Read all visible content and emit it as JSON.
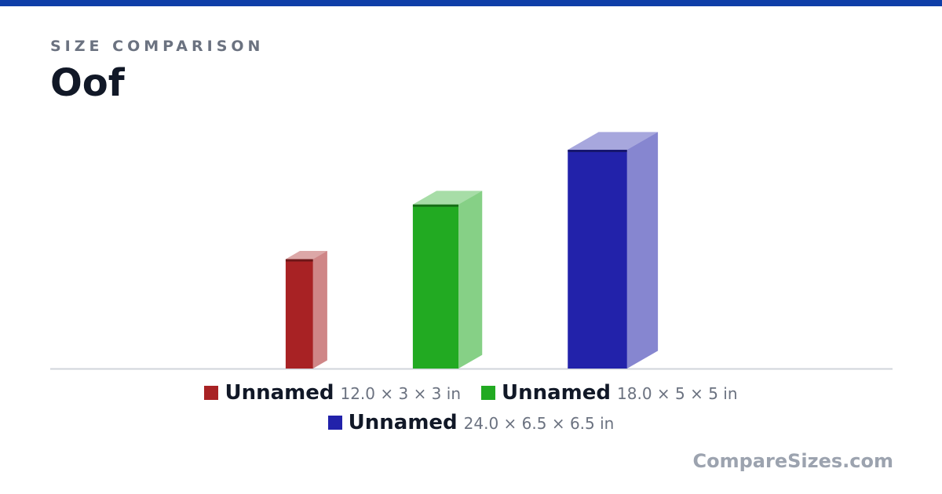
{
  "header": {
    "kicker": "SIZE COMPARISON",
    "title": "Oof"
  },
  "chart_data": {
    "type": "box3d",
    "items": [
      {
        "name": "Unnamed",
        "label": "12.0 × 3 × 3 in",
        "height": 12,
        "width": 3,
        "depth": 3,
        "color": "#a82224"
      },
      {
        "name": "Unnamed",
        "label": "18.0 × 5 × 5 in",
        "height": 18,
        "width": 5,
        "depth": 5,
        "color": "#22aa22"
      },
      {
        "name": "Unnamed",
        "label": "24.0 × 6.5 × 6.5 in",
        "height": 24,
        "width": 6.5,
        "depth": 6.5,
        "color": "#2222aa"
      }
    ]
  },
  "footer": "CompareSizes.com"
}
